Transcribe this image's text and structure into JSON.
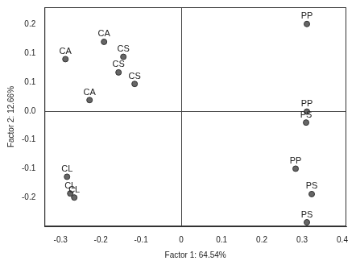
{
  "chart_data": {
    "type": "scatter",
    "x_label": "Factor 1: 64.54%",
    "y_label": "Factor 2: 12.66%",
    "x": [
      -0.288,
      -0.192,
      -0.228,
      -0.144,
      -0.156,
      -0.116,
      -0.284,
      -0.276,
      -0.266,
      0.312,
      0.312,
      0.31,
      0.284,
      0.324,
      0.312
    ],
    "values": [
      0.09,
      0.12,
      0.019,
      0.094,
      0.067,
      0.047,
      -0.114,
      -0.143,
      -0.15,
      0.151,
      -0.001,
      -0.02,
      -0.1,
      -0.144,
      -0.193
    ],
    "point_labels": [
      "CA",
      "CA",
      "CA",
      "CS",
      "CS",
      "CS",
      "CL",
      "CL",
      "CL",
      "PP",
      "PP",
      "PS",
      "PP",
      "PS",
      "PS"
    ],
    "color": "#666666",
    "marker": "circle",
    "xlim": [
      -0.34,
      0.41
    ],
    "xticks": [
      -0.3,
      -0.2,
      -0.1,
      0,
      0.1,
      0.2,
      0.3,
      0.4
    ],
    "ylim": [
      -0.2,
      0.18
    ],
    "yticks": [
      {
        "value": -0.15,
        "label": "-0.2"
      },
      {
        "value": -0.1,
        "label": "-0.1"
      },
      {
        "value": -0.05,
        "label": "-0.1"
      },
      {
        "value": 0,
        "label": "0.0"
      },
      {
        "value": 0.05,
        "label": "0.1"
      },
      {
        "value": 0.1,
        "label": "0.1"
      },
      {
        "value": 0.15,
        "label": "0.2"
      }
    ],
    "grid": false
  }
}
